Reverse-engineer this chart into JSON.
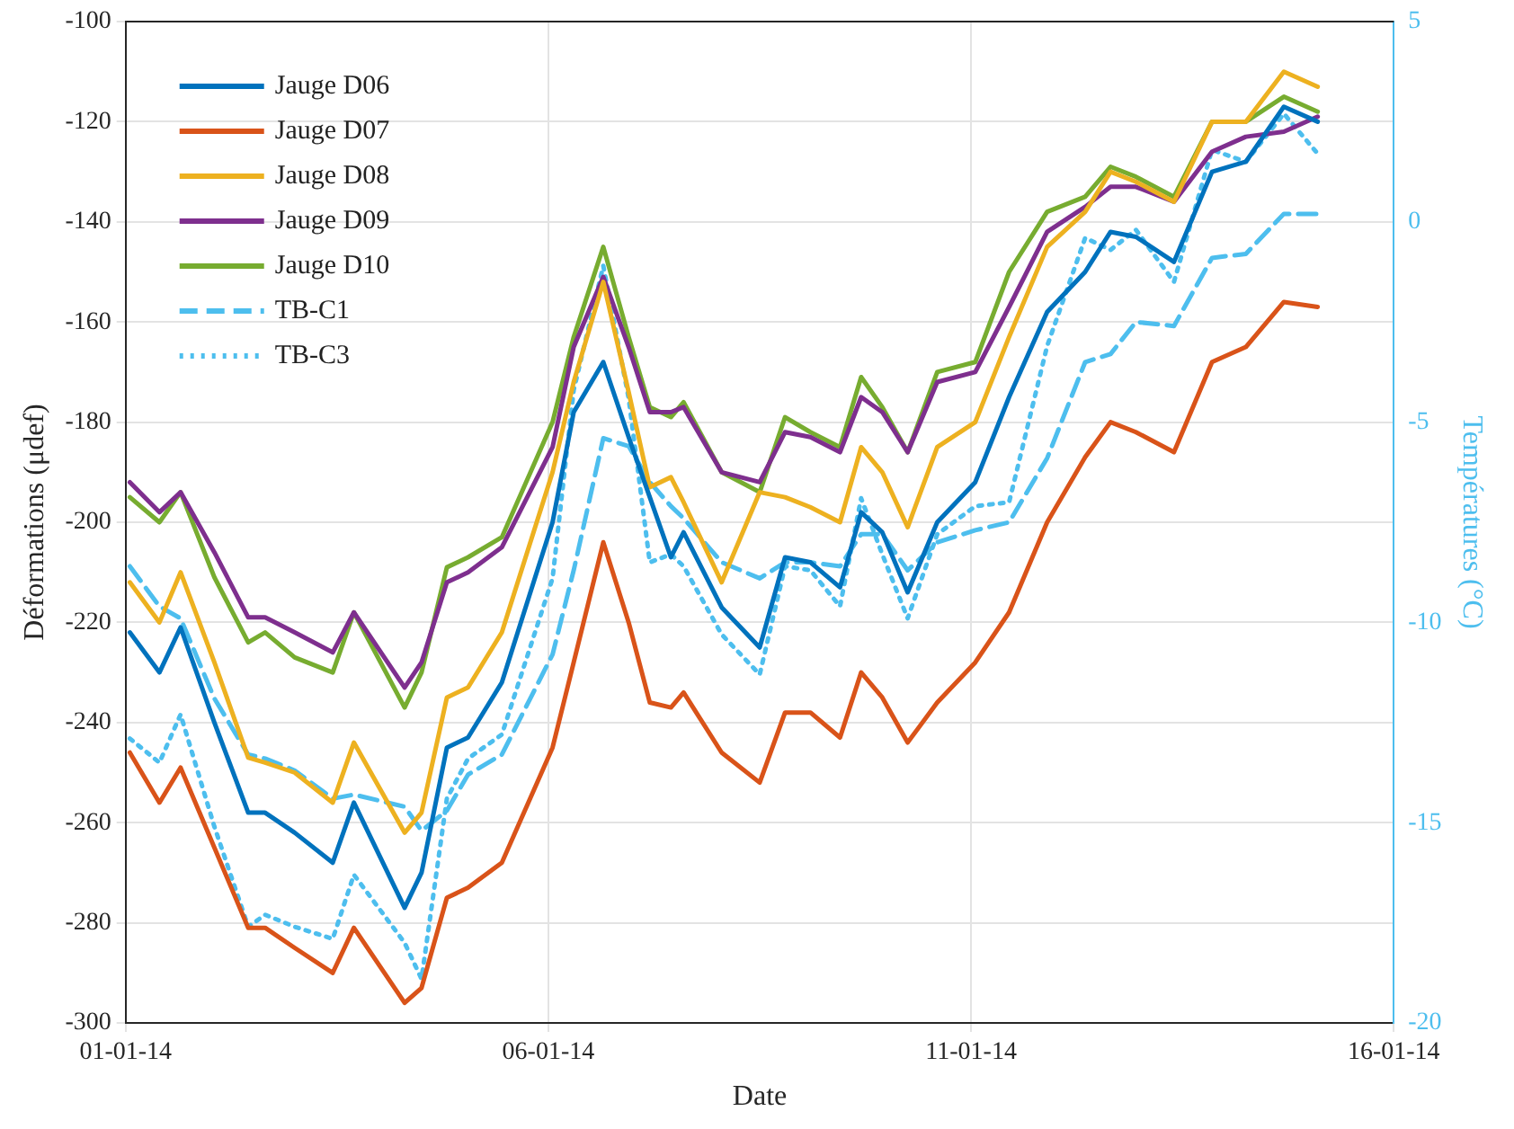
{
  "chart_data": {
    "type": "line",
    "xlabel": "Date",
    "ylabel": "Déformations (μdef)",
    "y2label": "Températures (°C)",
    "x": [
      "--01-01T01:12",
      "--01-01T09:36",
      "--01-01T15:36",
      "--01-02T01:12",
      "--01-02T10:48",
      "--01-02T15:36",
      "--01-03T00:00",
      "--01-03T10:48",
      "--01-03T16:48",
      "--01-04T07:12",
      "--01-04T12:00",
      "--01-04T19:12",
      "--01-05T01:12",
      "--01-05T10:48",
      "--01-06T01:12",
      "--01-06T07:12",
      "--01-06T15:36",
      "--01-06T22:48",
      "--01-07T04:48",
      "--01-07T10:48",
      "--01-07T14:24",
      "--01-08T01:12",
      "--01-08T12:00",
      "--01-08T19:12",
      "--01-09T02:24",
      "--01-09T10:48",
      "--01-09T16:48",
      "--01-09T22:48",
      "--01-10T06:00",
      "--01-10T14:24",
      "--01-11T01:12",
      "--01-11T10:48",
      "--01-11T21:36",
      "--01-12T08:24",
      "--01-12T15:36",
      "--01-12T22:48",
      "--01-13T09:36",
      "--01-13T20:24",
      "--01-14T06:00",
      "--01-14T16:48",
      "--01-15T02:24"
    ],
    "xlim": [
      "--01-01",
      "--01-16"
    ],
    "xticks": [
      {
        "value": "--01-01",
        "label": "01-01-14"
      },
      {
        "value": "--01-06",
        "label": "06-01-14"
      },
      {
        "value": "--01-11",
        "label": "11-01-14"
      },
      {
        "value": "--01-16",
        "label": "16-01-14"
      }
    ],
    "ylim": [
      -300,
      -100
    ],
    "yticks": [
      -300,
      -280,
      -260,
      -240,
      -220,
      -200,
      -180,
      -160,
      -140,
      -120,
      -100
    ],
    "y2lim": [
      -20,
      5
    ],
    "y2ticks": [
      -20,
      -15,
      -10,
      -5,
      0,
      5
    ],
    "grid": true,
    "legend": "top left",
    "marker": "none",
    "series": [
      {
        "name": "Jauge D06",
        "color": "#0072bd",
        "line_style": "solid",
        "values": [
          -222,
          -230,
          -221,
          -240,
          -258,
          -258,
          -262,
          -268,
          -256,
          -277,
          -270,
          -245,
          -243,
          -232,
          -200,
          -178,
          -168,
          -183,
          -195,
          -207,
          -202,
          -217,
          -225,
          -207,
          -208,
          -213,
          -198,
          -202,
          -214,
          -200,
          -192,
          -175,
          -158,
          -150,
          -142,
          -143,
          -148,
          -130,
          -128,
          -117,
          -120
        ]
      },
      {
        "name": "Jauge D07",
        "color": "#d95319",
        "line_style": "solid",
        "values": [
          -246,
          -256,
          -249,
          -265,
          -281,
          -281,
          -285,
          -290,
          -281,
          -296,
          -293,
          -275,
          -273,
          -268,
          -245,
          -228,
          -204,
          -220,
          -236,
          -237,
          -234,
          -246,
          -252,
          -238,
          -238,
          -243,
          -230,
          -235,
          -244,
          -236,
          -228,
          -218,
          -200,
          -187,
          -180,
          -182,
          -186,
          -168,
          -165,
          -156,
          -157
        ]
      },
      {
        "name": "Jauge D08",
        "color": "#edb120",
        "line_style": "solid",
        "values": [
          -212,
          -220,
          -210,
          -228,
          -247,
          -248,
          -250,
          -256,
          -244,
          -262,
          -258,
          -235,
          -233,
          -222,
          -190,
          -172,
          -152,
          -174,
          -193,
          -191,
          -196,
          -212,
          -194,
          -195,
          -197,
          -200,
          -185,
          -190,
          -201,
          -185,
          -180,
          -163,
          -145,
          -138,
          -130,
          -132,
          -136,
          -120,
          -120,
          -110,
          -113
        ]
      },
      {
        "name": "Jauge D09",
        "color": "#7e2f8e",
        "line_style": "solid",
        "values": [
          -192,
          -198,
          -194,
          -206,
          -219,
          -219,
          -222,
          -226,
          -218,
          -233,
          -228,
          -212,
          -210,
          -205,
          -185,
          -165,
          -151,
          -165,
          -178,
          -178,
          -177,
          -190,
          -192,
          -182,
          -183,
          -186,
          -175,
          -178,
          -186,
          -172,
          -170,
          -157,
          -142,
          -137,
          -133,
          -133,
          -136,
          -126,
          -123,
          -122,
          -119
        ]
      },
      {
        "name": "Jauge D10",
        "color": "#77ac30",
        "line_style": "solid",
        "values": [
          -195,
          -200,
          -194,
          -211,
          -224,
          -222,
          -227,
          -230,
          -218,
          -237,
          -230,
          -209,
          -207,
          -203,
          -180,
          -163,
          -145,
          -163,
          -177,
          -179,
          -176,
          -190,
          -194,
          -179,
          -182,
          -185,
          -171,
          -177,
          -186,
          -170,
          -168,
          -150,
          -138,
          -135,
          -129,
          -131,
          -135,
          -120,
          -120,
          -115,
          -118
        ]
      },
      {
        "name": "TB-C1",
        "color": "#4dbeee",
        "line_style": "dashed",
        "axis": "y2",
        "values": [
          -8.6,
          -9.6,
          -9.9,
          -11.9,
          -13.3,
          -13.4,
          -13.7,
          -14.4,
          -14.3,
          -14.6,
          -15.2,
          -14.7,
          -13.8,
          -13.3,
          -10.8,
          -8.7,
          -5.4,
          -5.6,
          -6.5,
          -7.1,
          -7.4,
          -8.5,
          -8.9,
          -8.5,
          -8.5,
          -8.6,
          -7.8,
          -7.8,
          -8.7,
          -8.0,
          -7.7,
          -7.5,
          -5.9,
          -3.5,
          -3.3,
          -2.5,
          -2.6,
          -0.9,
          -0.8,
          0.2,
          0.2
        ]
      },
      {
        "name": "TB-C3",
        "color": "#4dbeee",
        "line_style": "dotted",
        "axis": "y2",
        "values": [
          -12.9,
          -13.5,
          -12.3,
          -15.1,
          -17.6,
          -17.3,
          -17.6,
          -17.9,
          -16.3,
          -18.0,
          -18.9,
          -14.4,
          -13.4,
          -12.8,
          -8.9,
          -4.2,
          -1.1,
          -4.4,
          -8.5,
          -8.3,
          -8.6,
          -10.3,
          -11.3,
          -8.6,
          -8.7,
          -9.6,
          -6.9,
          -8.3,
          -9.9,
          -7.8,
          -7.1,
          -7.0,
          -3.1,
          -0.4,
          -0.7,
          -0.2,
          -1.5,
          1.8,
          1.5,
          2.7,
          1.7
        ]
      }
    ]
  }
}
